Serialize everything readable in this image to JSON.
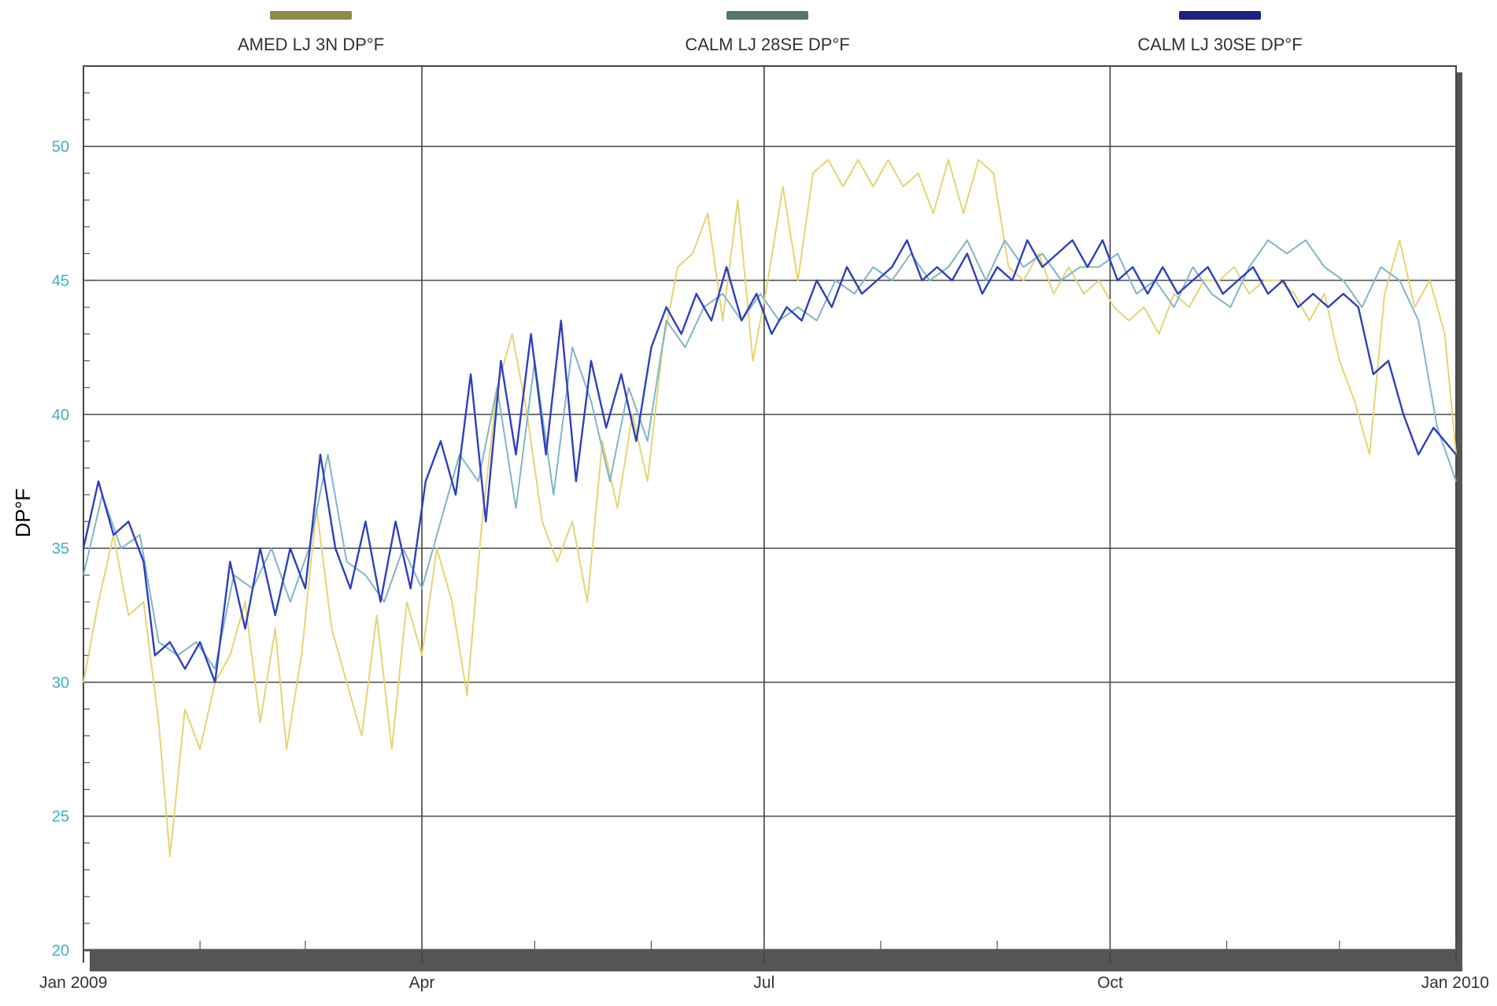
{
  "chart_data": {
    "type": "line",
    "title": "",
    "ylabel": "DP°F",
    "xlabel": "",
    "ylim": [
      20,
      53
    ],
    "xlim": [
      "2009-01-01",
      "2010-01-01"
    ],
    "y_ticks": [
      20,
      25,
      30,
      35,
      40,
      45,
      50
    ],
    "y_tick_labels": [
      "20",
      "25",
      "30",
      "35",
      "40",
      "45",
      "50"
    ],
    "x_ticks": [
      "2009-01-01",
      "2009-04-01",
      "2009-07-01",
      "2009-10-01",
      "2010-01-01"
    ],
    "x_tick_labels": [
      "Jan 2009",
      "Apr",
      "Jul",
      "Oct",
      "Jan 2010"
    ],
    "grid": true,
    "legend_position": "top",
    "axis_label_color": "#39b3c6",
    "series": [
      {
        "name": "AMED LJ 3N DP°F",
        "color": "#e6d472",
        "legend_color": "#8f8a44",
        "points": [
          [
            "2009-01-01",
            30
          ],
          [
            "2009-01-05",
            33
          ],
          [
            "2009-01-09",
            35.5
          ],
          [
            "2009-01-13",
            32.5
          ],
          [
            "2009-01-17",
            33
          ],
          [
            "2009-01-21",
            28.5
          ],
          [
            "2009-01-24",
            23.5
          ],
          [
            "2009-01-28",
            29
          ],
          [
            "2009-02-01",
            27.5
          ],
          [
            "2009-02-05",
            30
          ],
          [
            "2009-02-09",
            31
          ],
          [
            "2009-02-13",
            33
          ],
          [
            "2009-02-17",
            28.5
          ],
          [
            "2009-02-21",
            32
          ],
          [
            "2009-02-24",
            27.5
          ],
          [
            "2009-02-28",
            31
          ],
          [
            "2009-03-04",
            36.5
          ],
          [
            "2009-03-08",
            32
          ],
          [
            "2009-03-12",
            30
          ],
          [
            "2009-03-16",
            28
          ],
          [
            "2009-03-20",
            32.5
          ],
          [
            "2009-03-24",
            27.5
          ],
          [
            "2009-03-28",
            33
          ],
          [
            "2009-04-01",
            31
          ],
          [
            "2009-04-05",
            35
          ],
          [
            "2009-04-09",
            33
          ],
          [
            "2009-04-13",
            29.5
          ],
          [
            "2009-04-17",
            36
          ],
          [
            "2009-04-21",
            41
          ],
          [
            "2009-04-25",
            43
          ],
          [
            "2009-04-29",
            40
          ],
          [
            "2009-05-03",
            36
          ],
          [
            "2009-05-07",
            34.5
          ],
          [
            "2009-05-11",
            36
          ],
          [
            "2009-05-15",
            33
          ],
          [
            "2009-05-19",
            39
          ],
          [
            "2009-05-23",
            36.5
          ],
          [
            "2009-05-27",
            40
          ],
          [
            "2009-05-31",
            37.5
          ],
          [
            "2009-06-04",
            42.5
          ],
          [
            "2009-06-08",
            45.5
          ],
          [
            "2009-06-12",
            46
          ],
          [
            "2009-06-16",
            47.5
          ],
          [
            "2009-06-20",
            43.5
          ],
          [
            "2009-06-24",
            48
          ],
          [
            "2009-06-28",
            42
          ],
          [
            "2009-07-02",
            45
          ],
          [
            "2009-07-06",
            48.5
          ],
          [
            "2009-07-10",
            45
          ],
          [
            "2009-07-14",
            49
          ],
          [
            "2009-07-18",
            49.5
          ],
          [
            "2009-07-22",
            48.5
          ],
          [
            "2009-07-26",
            49.5
          ],
          [
            "2009-07-30",
            48.5
          ],
          [
            "2009-08-03",
            49.5
          ],
          [
            "2009-08-07",
            48.5
          ],
          [
            "2009-08-11",
            49
          ],
          [
            "2009-08-15",
            47.5
          ],
          [
            "2009-08-19",
            49.5
          ],
          [
            "2009-08-23",
            47.5
          ],
          [
            "2009-08-27",
            49.5
          ],
          [
            "2009-08-31",
            49
          ],
          [
            "2009-09-04",
            45.5
          ],
          [
            "2009-09-08",
            45
          ],
          [
            "2009-09-12",
            46
          ],
          [
            "2009-09-16",
            44.5
          ],
          [
            "2009-09-20",
            45.5
          ],
          [
            "2009-09-24",
            44.5
          ],
          [
            "2009-09-28",
            45
          ],
          [
            "2009-10-02",
            44
          ],
          [
            "2009-10-06",
            43.5
          ],
          [
            "2009-10-10",
            44
          ],
          [
            "2009-10-14",
            43
          ],
          [
            "2009-10-18",
            44.5
          ],
          [
            "2009-10-22",
            44
          ],
          [
            "2009-10-26",
            45
          ],
          [
            "2009-10-30",
            45
          ],
          [
            "2009-11-03",
            45.5
          ],
          [
            "2009-11-07",
            44.5
          ],
          [
            "2009-11-11",
            45
          ],
          [
            "2009-11-15",
            45
          ],
          [
            "2009-11-19",
            44.5
          ],
          [
            "2009-11-23",
            43.5
          ],
          [
            "2009-11-27",
            44.5
          ],
          [
            "2009-12-01",
            42
          ],
          [
            "2009-12-05",
            40.5
          ],
          [
            "2009-12-09",
            38.5
          ],
          [
            "2009-12-13",
            44.5
          ],
          [
            "2009-12-17",
            46.5
          ],
          [
            "2009-12-21",
            44
          ],
          [
            "2009-12-25",
            45
          ],
          [
            "2009-12-29",
            43
          ],
          [
            "2010-01-01",
            38.5
          ]
        ]
      },
      {
        "name": "CALM LJ 28SE DP°F",
        "color": "#7fb6c9",
        "legend_color": "#56756e",
        "points": [
          [
            "2009-01-01",
            34
          ],
          [
            "2009-01-06",
            37
          ],
          [
            "2009-01-11",
            35
          ],
          [
            "2009-01-16",
            35.5
          ],
          [
            "2009-01-21",
            31.5
          ],
          [
            "2009-01-26",
            31
          ],
          [
            "2009-01-31",
            31.5
          ],
          [
            "2009-02-05",
            30.5
          ],
          [
            "2009-02-10",
            34
          ],
          [
            "2009-02-15",
            33.5
          ],
          [
            "2009-02-20",
            35
          ],
          [
            "2009-02-25",
            33
          ],
          [
            "2009-03-02",
            35
          ],
          [
            "2009-03-07",
            38.5
          ],
          [
            "2009-03-12",
            34.5
          ],
          [
            "2009-03-17",
            34
          ],
          [
            "2009-03-22",
            33
          ],
          [
            "2009-03-27",
            35
          ],
          [
            "2009-04-01",
            33.5
          ],
          [
            "2009-04-06",
            36
          ],
          [
            "2009-04-11",
            38.5
          ],
          [
            "2009-04-16",
            37.5
          ],
          [
            "2009-04-21",
            41
          ],
          [
            "2009-04-26",
            36.5
          ],
          [
            "2009-05-01",
            42
          ],
          [
            "2009-05-06",
            37
          ],
          [
            "2009-05-11",
            42.5
          ],
          [
            "2009-05-16",
            40.5
          ],
          [
            "2009-05-21",
            37.5
          ],
          [
            "2009-05-26",
            41
          ],
          [
            "2009-05-31",
            39
          ],
          [
            "2009-06-05",
            43.5
          ],
          [
            "2009-06-10",
            42.5
          ],
          [
            "2009-06-15",
            44
          ],
          [
            "2009-06-20",
            44.5
          ],
          [
            "2009-06-25",
            43.5
          ],
          [
            "2009-06-30",
            44.5
          ],
          [
            "2009-07-05",
            43.5
          ],
          [
            "2009-07-10",
            44
          ],
          [
            "2009-07-15",
            43.5
          ],
          [
            "2009-07-20",
            45
          ],
          [
            "2009-07-25",
            44.5
          ],
          [
            "2009-07-30",
            45.5
          ],
          [
            "2009-08-04",
            45
          ],
          [
            "2009-08-09",
            46
          ],
          [
            "2009-08-14",
            45
          ],
          [
            "2009-08-19",
            45.5
          ],
          [
            "2009-08-24",
            46.5
          ],
          [
            "2009-08-29",
            45
          ],
          [
            "2009-09-03",
            46.5
          ],
          [
            "2009-09-08",
            45.5
          ],
          [
            "2009-09-13",
            46
          ],
          [
            "2009-09-18",
            45
          ],
          [
            "2009-09-23",
            45.5
          ],
          [
            "2009-09-28",
            45.5
          ],
          [
            "2009-10-03",
            46
          ],
          [
            "2009-10-08",
            44.5
          ],
          [
            "2009-10-13",
            45
          ],
          [
            "2009-10-18",
            44
          ],
          [
            "2009-10-23",
            45.5
          ],
          [
            "2009-10-28",
            44.5
          ],
          [
            "2009-11-02",
            44
          ],
          [
            "2009-11-07",
            45.5
          ],
          [
            "2009-11-12",
            46.5
          ],
          [
            "2009-11-17",
            46
          ],
          [
            "2009-11-22",
            46.5
          ],
          [
            "2009-11-27",
            45.5
          ],
          [
            "2009-12-02",
            45
          ],
          [
            "2009-12-07",
            44
          ],
          [
            "2009-12-12",
            45.5
          ],
          [
            "2009-12-17",
            45
          ],
          [
            "2009-12-22",
            43.5
          ],
          [
            "2009-12-27",
            39.5
          ],
          [
            "2010-01-01",
            37.5
          ]
        ]
      },
      {
        "name": "CALM LJ 30SE DP°F",
        "color": "#2f3fc0",
        "legend_color": "#1c237e",
        "points": [
          [
            "2009-01-01",
            35
          ],
          [
            "2009-01-05",
            37.5
          ],
          [
            "2009-01-09",
            35.5
          ],
          [
            "2009-01-13",
            36
          ],
          [
            "2009-01-17",
            34.5
          ],
          [
            "2009-01-20",
            31
          ],
          [
            "2009-01-24",
            31.5
          ],
          [
            "2009-01-28",
            30.5
          ],
          [
            "2009-02-01",
            31.5
          ],
          [
            "2009-02-05",
            30
          ],
          [
            "2009-02-09",
            34.5
          ],
          [
            "2009-02-13",
            32
          ],
          [
            "2009-02-17",
            35
          ],
          [
            "2009-02-21",
            32.5
          ],
          [
            "2009-02-25",
            35
          ],
          [
            "2009-03-01",
            33.5
          ],
          [
            "2009-03-05",
            38.5
          ],
          [
            "2009-03-09",
            35
          ],
          [
            "2009-03-13",
            33.5
          ],
          [
            "2009-03-17",
            36
          ],
          [
            "2009-03-21",
            33
          ],
          [
            "2009-03-25",
            36
          ],
          [
            "2009-03-29",
            33.5
          ],
          [
            "2009-04-02",
            37.5
          ],
          [
            "2009-04-06",
            39
          ],
          [
            "2009-04-10",
            37
          ],
          [
            "2009-04-14",
            41.5
          ],
          [
            "2009-04-18",
            36
          ],
          [
            "2009-04-22",
            42
          ],
          [
            "2009-04-26",
            38.5
          ],
          [
            "2009-04-30",
            43
          ],
          [
            "2009-05-04",
            38.5
          ],
          [
            "2009-05-08",
            43.5
          ],
          [
            "2009-05-12",
            37.5
          ],
          [
            "2009-05-16",
            42
          ],
          [
            "2009-05-20",
            39.5
          ],
          [
            "2009-05-24",
            41.5
          ],
          [
            "2009-05-28",
            39
          ],
          [
            "2009-06-01",
            42.5
          ],
          [
            "2009-06-05",
            44
          ],
          [
            "2009-06-09",
            43
          ],
          [
            "2009-06-13",
            44.5
          ],
          [
            "2009-06-17",
            43.5
          ],
          [
            "2009-06-21",
            45.5
          ],
          [
            "2009-06-25",
            43.5
          ],
          [
            "2009-06-29",
            44.5
          ],
          [
            "2009-07-03",
            43
          ],
          [
            "2009-07-07",
            44
          ],
          [
            "2009-07-11",
            43.5
          ],
          [
            "2009-07-15",
            45
          ],
          [
            "2009-07-19",
            44
          ],
          [
            "2009-07-23",
            45.5
          ],
          [
            "2009-07-27",
            44.5
          ],
          [
            "2009-07-31",
            45
          ],
          [
            "2009-08-04",
            45.5
          ],
          [
            "2009-08-08",
            46.5
          ],
          [
            "2009-08-12",
            45
          ],
          [
            "2009-08-16",
            45.5
          ],
          [
            "2009-08-20",
            45
          ],
          [
            "2009-08-24",
            46
          ],
          [
            "2009-08-28",
            44.5
          ],
          [
            "2009-09-01",
            45.5
          ],
          [
            "2009-09-05",
            45
          ],
          [
            "2009-09-09",
            46.5
          ],
          [
            "2009-09-13",
            45.5
          ],
          [
            "2009-09-17",
            46
          ],
          [
            "2009-09-21",
            46.5
          ],
          [
            "2009-09-25",
            45.5
          ],
          [
            "2009-09-29",
            46.5
          ],
          [
            "2009-10-03",
            45
          ],
          [
            "2009-10-07",
            45.5
          ],
          [
            "2009-10-11",
            44.5
          ],
          [
            "2009-10-15",
            45.5
          ],
          [
            "2009-10-19",
            44.5
          ],
          [
            "2009-10-23",
            45
          ],
          [
            "2009-10-27",
            45.5
          ],
          [
            "2009-10-31",
            44.5
          ],
          [
            "2009-11-04",
            45
          ],
          [
            "2009-11-08",
            45.5
          ],
          [
            "2009-11-12",
            44.5
          ],
          [
            "2009-11-16",
            45
          ],
          [
            "2009-11-20",
            44
          ],
          [
            "2009-11-24",
            44.5
          ],
          [
            "2009-11-28",
            44
          ],
          [
            "2009-12-02",
            44.5
          ],
          [
            "2009-12-06",
            44
          ],
          [
            "2009-12-10",
            41.5
          ],
          [
            "2009-12-14",
            42
          ],
          [
            "2009-12-18",
            40
          ],
          [
            "2009-12-22",
            38.5
          ],
          [
            "2009-12-26",
            39.5
          ],
          [
            "2010-01-01",
            38.5
          ]
        ]
      }
    ]
  }
}
